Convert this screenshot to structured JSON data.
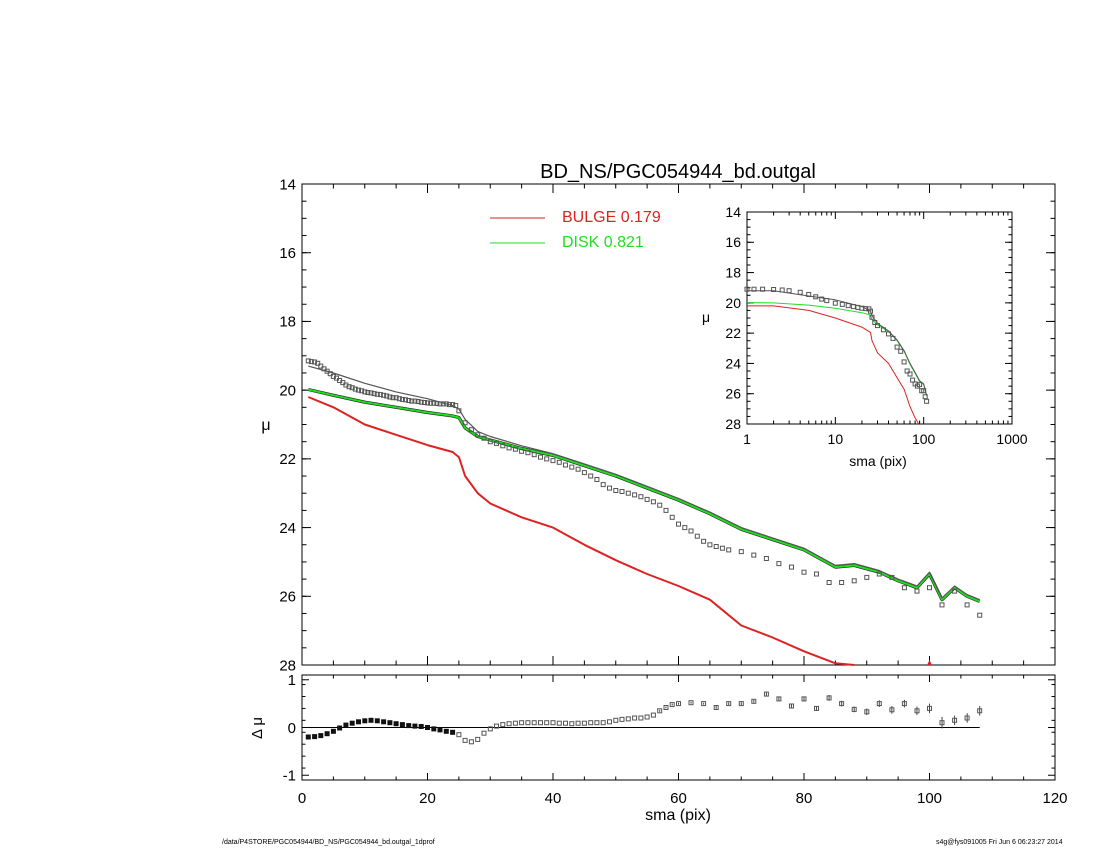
{
  "footer": {
    "path": "/data/P4STORE/PGC054944/BD_NS/PGC054944_bd.outgal_1dprof",
    "stamp": "s4g@fys091005  Fri Jun  6 06:23:27 2014"
  },
  "colors": {
    "bulge": "#dd2222",
    "disk": "#22dd22",
    "total": "#555555",
    "data": "#777777",
    "axis": "#000000"
  },
  "chart_data": [
    {
      "id": "main",
      "type": "line",
      "title": "BD_NS/PGC054944_bd.outgal",
      "xlabel": "",
      "ylabel": "μ",
      "xlim": [
        0,
        120
      ],
      "ylim": [
        28,
        14
      ],
      "y_reversed": true,
      "xticks": [
        0,
        20,
        40,
        60,
        80,
        100,
        120
      ],
      "yticks": [
        14,
        16,
        18,
        20,
        22,
        24,
        26,
        28
      ],
      "legend": {
        "placement": "top-center",
        "entries": [
          {
            "label": "BULGE  0.179",
            "color": "#dd2222"
          },
          {
            "label": "DISK  0.821",
            "color": "#22dd22"
          }
        ]
      },
      "series": [
        {
          "id": "bulge",
          "style": "line",
          "x": [
            1,
            5,
            10,
            15,
            20,
            24,
            25,
            26,
            28,
            30,
            35,
            40,
            45,
            50,
            55,
            60,
            65,
            70,
            75,
            80,
            85,
            88
          ],
          "y": [
            20.2,
            20.5,
            21.0,
            21.3,
            21.6,
            21.8,
            21.95,
            22.5,
            23.0,
            23.3,
            23.7,
            24.0,
            24.5,
            24.95,
            25.35,
            25.7,
            26.1,
            26.85,
            27.2,
            27.6,
            27.95,
            28.0
          ]
        },
        {
          "id": "disk",
          "style": "line",
          "x": [
            1,
            5,
            10,
            15,
            20,
            24,
            25,
            26,
            28,
            30,
            35,
            40,
            45,
            50,
            55,
            60,
            65,
            70,
            75,
            80,
            85,
            88,
            92,
            95,
            98,
            100,
            102,
            104,
            106,
            108
          ],
          "y": [
            19.98,
            20.15,
            20.35,
            20.5,
            20.65,
            20.75,
            20.8,
            21.1,
            21.35,
            21.45,
            21.7,
            21.9,
            22.2,
            22.5,
            22.85,
            23.2,
            23.6,
            24.05,
            24.35,
            24.65,
            25.15,
            25.1,
            25.3,
            25.55,
            25.75,
            25.35,
            26.1,
            25.75,
            26.0,
            26.15
          ]
        },
        {
          "id": "total",
          "style": "line",
          "x": [
            1,
            5,
            10,
            15,
            20,
            24,
            25,
            26,
            28,
            30,
            35,
            40,
            45,
            50,
            55,
            60,
            65,
            70,
            75,
            80,
            85,
            88,
            92,
            95,
            98,
            100,
            102,
            104,
            106,
            108
          ],
          "y": [
            19.3,
            19.5,
            19.8,
            20.05,
            20.25,
            20.45,
            20.55,
            20.85,
            21.2,
            21.35,
            21.62,
            21.85,
            22.15,
            22.45,
            22.8,
            23.15,
            23.55,
            24.0,
            24.3,
            24.6,
            25.1,
            25.05,
            25.25,
            25.5,
            25.7,
            25.3,
            26.05,
            25.7,
            25.95,
            26.1
          ]
        },
        {
          "id": "data",
          "style": "points",
          "x": [
            1,
            1.5,
            2,
            2.5,
            3,
            3.5,
            4,
            4.5,
            5,
            5.5,
            6,
            6.5,
            7,
            7.5,
            8,
            8.5,
            9,
            9.5,
            10,
            10.5,
            11,
            11.5,
            12,
            12.5,
            13,
            13.5,
            14,
            14.5,
            15,
            15.5,
            16,
            16.5,
            17,
            17.5,
            18,
            18.5,
            19,
            19.5,
            20,
            20.5,
            21,
            21.5,
            22,
            22.5,
            23,
            23.5,
            24,
            24.5,
            25,
            26,
            27,
            28,
            29,
            30,
            31,
            32,
            33,
            34,
            35,
            36,
            37,
            38,
            39,
            40,
            41,
            42,
            43,
            44,
            45,
            46,
            47,
            48,
            49,
            50,
            51,
            52,
            53,
            54,
            55,
            56,
            57,
            58,
            59,
            60,
            61,
            62,
            63,
            64,
            65,
            66,
            67,
            68,
            70,
            72,
            74,
            76,
            78,
            80,
            82,
            84,
            86,
            88,
            90,
            92,
            94,
            96,
            98,
            100,
            102,
            104,
            106,
            108
          ],
          "y": [
            19.15,
            19.17,
            19.18,
            19.22,
            19.3,
            19.38,
            19.45,
            19.52,
            19.6,
            19.65,
            19.72,
            19.78,
            19.85,
            19.9,
            19.93,
            19.97,
            20.0,
            20.02,
            20.05,
            20.07,
            20.08,
            20.1,
            20.12,
            20.13,
            20.15,
            20.17,
            20.2,
            20.22,
            20.22,
            20.25,
            20.27,
            20.28,
            20.3,
            20.32,
            20.32,
            20.33,
            20.35,
            20.36,
            20.37,
            20.38,
            20.38,
            20.39,
            20.4,
            20.4,
            20.4,
            20.42,
            20.42,
            20.45,
            20.6,
            20.95,
            21.15,
            21.3,
            21.4,
            21.5,
            21.55,
            21.62,
            21.68,
            21.72,
            21.78,
            21.82,
            21.88,
            21.95,
            22.0,
            22.05,
            22.1,
            22.18,
            22.24,
            22.3,
            22.4,
            22.5,
            22.6,
            22.75,
            22.85,
            22.92,
            22.95,
            23.0,
            23.05,
            23.1,
            23.18,
            23.25,
            23.35,
            23.5,
            23.7,
            23.9,
            24.0,
            24.1,
            24.25,
            24.4,
            24.5,
            24.55,
            24.6,
            24.65,
            24.7,
            24.8,
            24.9,
            25.05,
            25.15,
            25.3,
            25.35,
            25.6,
            25.6,
            25.55,
            25.45,
            25.35,
            25.45,
            25.75,
            25.85,
            25.75,
            26.25,
            25.85,
            26.25,
            26.55
          ]
        }
      ]
    },
    {
      "id": "inset",
      "type": "line",
      "title": "",
      "xlabel": "sma (pix)",
      "ylabel": "μ",
      "xscale": "log",
      "xlim": [
        1,
        1000
      ],
      "ylim": [
        28,
        14
      ],
      "y_reversed": true,
      "xticks": [
        1,
        10,
        100,
        1000
      ],
      "yticks": [
        14,
        16,
        18,
        20,
        22,
        24,
        26,
        28
      ],
      "series": [
        {
          "id": "bulge",
          "style": "line",
          "x": [
            1,
            2,
            5,
            10,
            20,
            25,
            26,
            30,
            40,
            50,
            60,
            70,
            80,
            88
          ],
          "y": [
            20.2,
            20.2,
            20.5,
            21.0,
            21.6,
            21.95,
            22.5,
            23.3,
            24.0,
            24.95,
            25.7,
            26.85,
            27.6,
            28.0
          ]
        },
        {
          "id": "disk",
          "style": "line",
          "x": [
            1,
            2,
            5,
            10,
            20,
            25,
            26,
            30,
            40,
            50,
            60,
            70,
            80,
            90,
            100,
            108
          ],
          "y": [
            19.98,
            20.0,
            20.15,
            20.35,
            20.65,
            20.8,
            21.1,
            21.45,
            21.9,
            22.5,
            23.2,
            24.05,
            24.65,
            25.2,
            25.4,
            26.15
          ]
        },
        {
          "id": "total",
          "style": "line",
          "x": [
            1,
            2,
            5,
            10,
            20,
            25,
            26,
            30,
            40,
            50,
            60,
            70,
            80,
            90,
            100,
            108
          ],
          "y": [
            19.2,
            19.2,
            19.55,
            19.8,
            20.25,
            20.55,
            20.85,
            21.35,
            21.85,
            22.45,
            23.15,
            24.0,
            24.6,
            25.15,
            25.35,
            26.1
          ]
        },
        {
          "id": "data",
          "style": "points",
          "x": [
            1,
            1.2,
            1.5,
            2,
            2.5,
            3,
            4,
            5,
            6,
            7,
            8,
            10,
            12,
            14,
            16,
            18,
            20,
            22,
            24,
            25,
            26,
            28,
            30,
            35,
            40,
            45,
            50,
            55,
            60,
            65,
            70,
            75,
            80,
            85,
            90,
            95,
            100,
            104,
            108
          ],
          "y": [
            19.1,
            19.1,
            19.1,
            19.12,
            19.15,
            19.2,
            19.3,
            19.45,
            19.6,
            19.75,
            19.85,
            20.02,
            20.1,
            20.18,
            20.25,
            20.3,
            20.35,
            20.38,
            20.4,
            20.55,
            20.95,
            21.3,
            21.5,
            21.78,
            22.05,
            22.35,
            22.92,
            23.2,
            23.9,
            24.5,
            24.7,
            25.1,
            25.35,
            25.5,
            25.4,
            25.8,
            25.8,
            26.2,
            26.5
          ]
        }
      ]
    },
    {
      "id": "residual",
      "type": "scatter",
      "title": "",
      "xlabel": "sma (pix)",
      "ylabel": "Δ μ",
      "xlim": [
        0,
        120
      ],
      "ylim": [
        -1.1,
        1.1
      ],
      "xticks": [
        0,
        20,
        40,
        60,
        80,
        100,
        120
      ],
      "yticks": [
        -1,
        0,
        1
      ],
      "series": [
        {
          "id": "residuals",
          "style": "points",
          "x": [
            1,
            2,
            3,
            4,
            5,
            6,
            7,
            8,
            9,
            10,
            11,
            12,
            13,
            14,
            15,
            16,
            17,
            18,
            19,
            20,
            21,
            22,
            23,
            24,
            25,
            26,
            27,
            28,
            29,
            30,
            31,
            32,
            33,
            34,
            35,
            36,
            37,
            38,
            39,
            40,
            41,
            42,
            43,
            44,
            45,
            46,
            47,
            48,
            49,
            50,
            51,
            52,
            53,
            54,
            55,
            56,
            57,
            58,
            59,
            60,
            62,
            64,
            66,
            68,
            70,
            72,
            74,
            76,
            78,
            80,
            82,
            84,
            86,
            88,
            90,
            92,
            94,
            96,
            98,
            100,
            102,
            104,
            106,
            108
          ],
          "y": [
            -0.2,
            -0.19,
            -0.17,
            -0.13,
            -0.08,
            -0.01,
            0.05,
            0.09,
            0.12,
            0.14,
            0.15,
            0.14,
            0.12,
            0.1,
            0.08,
            0.06,
            0.04,
            0.03,
            0.02,
            0.0,
            -0.03,
            -0.05,
            -0.08,
            -0.1,
            -0.15,
            -0.27,
            -0.3,
            -0.25,
            -0.12,
            -0.03,
            0.03,
            0.06,
            0.08,
            0.09,
            0.1,
            0.1,
            0.1,
            0.1,
            0.1,
            0.1,
            0.09,
            0.09,
            0.08,
            0.09,
            0.09,
            0.1,
            0.1,
            0.1,
            0.12,
            0.15,
            0.17,
            0.18,
            0.2,
            0.2,
            0.22,
            0.26,
            0.35,
            0.42,
            0.48,
            0.5,
            0.52,
            0.5,
            0.42,
            0.5,
            0.5,
            0.55,
            0.7,
            0.6,
            0.45,
            0.6,
            0.4,
            0.62,
            0.5,
            0.38,
            0.33,
            0.5,
            0.37,
            0.5,
            0.35,
            0.4,
            0.1,
            0.15,
            0.2,
            0.35
          ],
          "err": [
            0.01,
            0.01,
            0.01,
            0.01,
            0.01,
            0.01,
            0.01,
            0.01,
            0.01,
            0.01,
            0.01,
            0.01,
            0.01,
            0.01,
            0.01,
            0.01,
            0.01,
            0.01,
            0.01,
            0.01,
            0.01,
            0.01,
            0.01,
            0.01,
            0.01,
            0.01,
            0.01,
            0.01,
            0.01,
            0.01,
            0.01,
            0.01,
            0.01,
            0.01,
            0.01,
            0.01,
            0.01,
            0.01,
            0.01,
            0.01,
            0.01,
            0.01,
            0.01,
            0.01,
            0.01,
            0.01,
            0.01,
            0.01,
            0.01,
            0.01,
            0.01,
            0.01,
            0.01,
            0.01,
            0.01,
            0.01,
            0.02,
            0.02,
            0.02,
            0.02,
            0.02,
            0.02,
            0.03,
            0.03,
            0.03,
            0.03,
            0.04,
            0.04,
            0.04,
            0.05,
            0.05,
            0.06,
            0.06,
            0.06,
            0.07,
            0.07,
            0.08,
            0.08,
            0.09,
            0.1,
            0.12,
            0.1,
            0.1,
            0.1
          ]
        }
      ]
    }
  ]
}
